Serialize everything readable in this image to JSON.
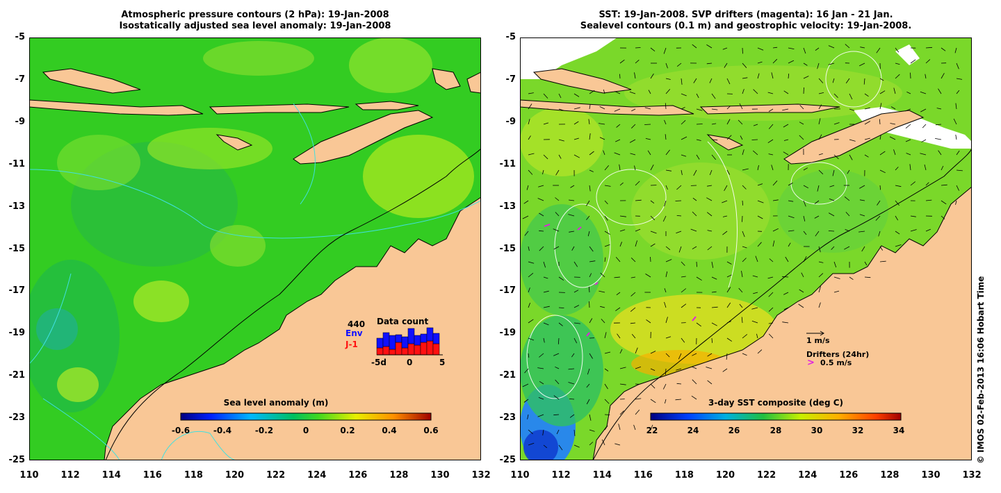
{
  "left_panel": {
    "title_line1": "Atmospheric pressure contours (2 hPa): 19-Jan-2008",
    "title_line2": "Isostatically adjusted sea level anomaly: 19-Jan-2008",
    "colorbar_label": "Sea level anomaly (m)",
    "colorbar_ticks": [
      "-0.6",
      "-0.4",
      "-0.2",
      "0",
      "0.2",
      "0.4",
      "0.6"
    ],
    "inset": {
      "title": "Data count",
      "count": "440",
      "env_label": "Env",
      "j1_label": "J-1",
      "x_ticks": [
        "-5d",
        "0",
        "5"
      ],
      "env_color": "#1010ff",
      "j1_color": "#ff1010"
    }
  },
  "right_panel": {
    "title_line1": "SST: 19-Jan-2008. SVP drifters (magenta): 16 Jan - 21 Jan.",
    "title_line2": "Sealevel contours (0.1 m) and geostrophic velocity: 19-Jan-2008.",
    "colorbar_label": "3-day SST composite (deg C)",
    "colorbar_ticks": [
      "22",
      "24",
      "26",
      "28",
      "30",
      "32",
      "34"
    ],
    "velocity_scale_label": "1 m/s",
    "drifters_label": "Drifters (24hr)",
    "drifters_scale_label": "0.5 m/s",
    "drifter_color": "#e020e0"
  },
  "axes": {
    "y_ticks": [
      "-5",
      "-7",
      "-9",
      "-11",
      "-13",
      "-15",
      "-17",
      "-19",
      "-21",
      "-23",
      "-25"
    ],
    "x_ticks": [
      "110",
      "112",
      "114",
      "116",
      "118",
      "120",
      "122",
      "124",
      "126",
      "128",
      "130",
      "132"
    ],
    "lat_range": [
      -25,
      -5
    ],
    "lon_range": [
      110,
      132
    ]
  },
  "colors": {
    "land": "#f9c796",
    "ocean_base": "#33cc22",
    "sst_base": "#7ad82a",
    "warm": "#f5a000",
    "pressure_contour": "#40e0e0"
  },
  "copyright": "© IMOS 02-Feb-2013 16:06 Hobart Time"
}
